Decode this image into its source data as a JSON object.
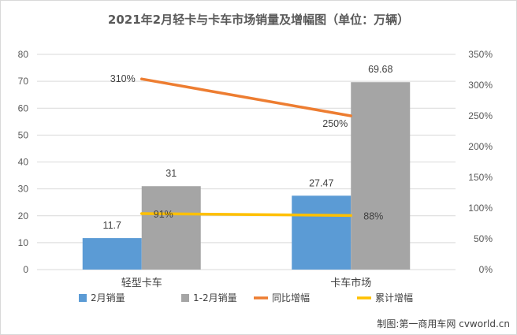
{
  "chart_data": {
    "type": "bar",
    "title": "2021年2月轻卡与卡车市场销量及增幅图（单位：万辆）",
    "categories": [
      "轻型卡车",
      "卡车市场"
    ],
    "series": [
      {
        "name": "2月销量",
        "kind": "bar",
        "axis": "left",
        "color": "#5b9bd5",
        "values": [
          11.7,
          27.47
        ],
        "labels": [
          "11.7",
          "27.47"
        ]
      },
      {
        "name": "1-2月销量",
        "kind": "bar",
        "axis": "left",
        "color": "#a5a5a5",
        "values": [
          31,
          69.68
        ],
        "labels": [
          "31",
          "69.68"
        ]
      },
      {
        "name": "同比增幅",
        "kind": "line",
        "axis": "right",
        "color": "#ed7d31",
        "values": [
          310,
          250
        ],
        "labels": [
          "310%",
          "250%"
        ]
      },
      {
        "name": "累计增幅",
        "kind": "line",
        "axis": "right",
        "color": "#ffc000",
        "values": [
          91,
          88
        ],
        "labels": [
          "91%",
          "88%"
        ]
      }
    ],
    "y_left": {
      "min": 0,
      "max": 80,
      "ticks": [
        "0",
        "10",
        "20",
        "30",
        "40",
        "50",
        "60",
        "70",
        "80"
      ]
    },
    "y_right": {
      "min": 0,
      "max": 350,
      "ticks": [
        "0%",
        "50%",
        "100%",
        "150%",
        "200%",
        "250%",
        "300%",
        "350%"
      ]
    },
    "grid": true,
    "legend": "bottom",
    "credit": "制图:第一商用车网 cvworld.cn"
  }
}
